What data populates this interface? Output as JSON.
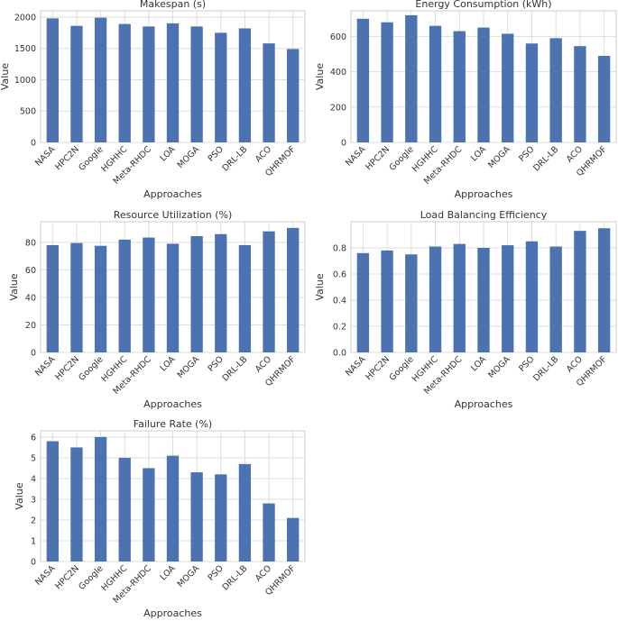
{
  "chart_data": [
    {
      "type": "bar",
      "title": "Makespan (s)",
      "xlabel": "Approaches",
      "ylabel": "Value",
      "categories": [
        "NASA",
        "HPC2N",
        "Google",
        "HGHHC",
        "Meta-RHDC",
        "LOA",
        "MOGA",
        "PSO",
        "DRL-LB",
        "ACO",
        "QHRMOF"
      ],
      "values": [
        1980,
        1860,
        1990,
        1890,
        1850,
        1900,
        1850,
        1750,
        1820,
        1580,
        1490
      ],
      "ylim": [
        0,
        2100
      ],
      "yticks": [
        0,
        500,
        1000,
        1500,
        2000
      ],
      "yticklabels": [
        "0",
        "500",
        "1000",
        "1500",
        "2000"
      ],
      "grid": true
    },
    {
      "type": "bar",
      "title": "Energy Consumption (kWh)",
      "xlabel": "Approaches",
      "ylabel": "Value",
      "categories": [
        "NASA",
        "HPC2N",
        "Google",
        "HGHHC",
        "Meta-RHDC",
        "LOA",
        "MOGA",
        "PSO",
        "DRL-LB",
        "ACO",
        "QHRMOF"
      ],
      "values": [
        700,
        680,
        720,
        660,
        630,
        650,
        615,
        560,
        590,
        545,
        490
      ],
      "ylim": [
        0,
        745
      ],
      "yticks": [
        0,
        200,
        400,
        600
      ],
      "yticklabels": [
        "0",
        "200",
        "400",
        "600"
      ],
      "grid": true
    },
    {
      "type": "bar",
      "title": "Resource Utilization (%)",
      "xlabel": "Approaches",
      "ylabel": "Value",
      "categories": [
        "NASA",
        "HPC2N",
        "Google",
        "HGHHC",
        "Meta-RHDC",
        "LOA",
        "MOGA",
        "PSO",
        "DRL-LB",
        "ACO",
        "QHRMOF"
      ],
      "values": [
        78,
        79.5,
        77.5,
        82,
        83.5,
        79,
        84.5,
        86,
        78,
        88,
        90.5
      ],
      "ylim": [
        0,
        95
      ],
      "yticks": [
        0,
        20,
        40,
        60,
        80
      ],
      "yticklabels": [
        "0",
        "20",
        "40",
        "60",
        "80"
      ],
      "grid": true
    },
    {
      "type": "bar",
      "title": "Load Balancing Efficiency",
      "xlabel": "Approaches",
      "ylabel": "Value",
      "categories": [
        "NASA",
        "HPC2N",
        "Google",
        "HGHHC",
        "Meta-RHDC",
        "LOA",
        "MOGA",
        "PSO",
        "DRL-LB",
        "ACO",
        "QHRMOF"
      ],
      "values": [
        0.76,
        0.78,
        0.75,
        0.81,
        0.83,
        0.8,
        0.82,
        0.85,
        0.81,
        0.93,
        0.95
      ],
      "ylim": [
        0,
        1.0
      ],
      "yticks": [
        0,
        0.2,
        0.4,
        0.6,
        0.8
      ],
      "yticklabels": [
        "0.0",
        "0.2",
        "0.4",
        "0.6",
        "0.8"
      ],
      "grid": true
    },
    {
      "type": "bar",
      "title": "Failure Rate (%)",
      "xlabel": "Approaches",
      "ylabel": "Value",
      "categories": [
        "NASA",
        "HPC2N",
        "Google",
        "HGHHC",
        "Meta-RHDC",
        "LOA",
        "MOGA",
        "PSO",
        "DRL-LB",
        "ACO",
        "QHRMOF"
      ],
      "values": [
        5.8,
        5.5,
        6.0,
        5.0,
        4.5,
        5.1,
        4.3,
        4.2,
        4.7,
        2.8,
        2.1
      ],
      "ylim": [
        0,
        6.3
      ],
      "yticks": [
        0,
        1,
        2,
        3,
        4,
        5,
        6
      ],
      "yticklabels": [
        "0",
        "1",
        "2",
        "3",
        "4",
        "5",
        "6"
      ],
      "grid": true
    }
  ],
  "style": {
    "bar_color": "#4c72b0",
    "grid_color": "#dddddd",
    "frame_color": "#cccccc"
  }
}
